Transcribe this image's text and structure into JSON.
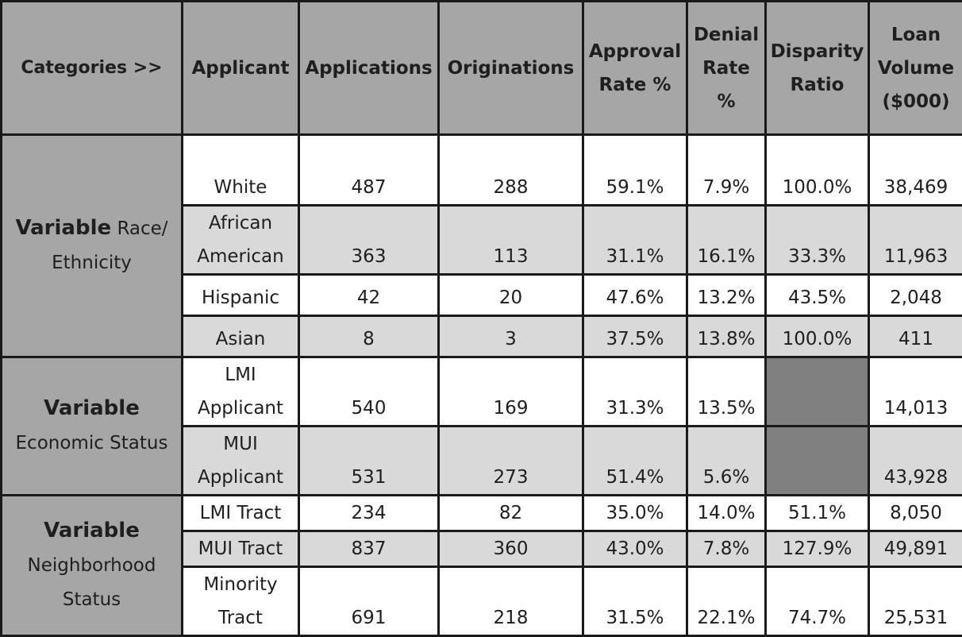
{
  "headers": {
    "categories": "Categories >>",
    "applicant": "Applicant",
    "applications": "Applications",
    "originations": "Originations",
    "approval_rate": "Approval Rate %",
    "denial_rate": "Denial Rate %",
    "disparity_ratio": "Disparity Ratio",
    "loan_volume": "Loan Volume ($000)"
  },
  "groups": {
    "race": {
      "bold": "Variable",
      "label": "Race/ Ethnicity"
    },
    "economic": {
      "bold": "Variable",
      "label": "Economic Status"
    },
    "neighborhood": {
      "bold": "Variable",
      "label": "Neighborhood Status"
    }
  },
  "rows": [
    {
      "applicant": "White",
      "applications": "487",
      "originations": "288",
      "approval_rate": "59.1%",
      "denial_rate": "7.9%",
      "disparity_ratio": "100.0%",
      "loan_volume": "38,469"
    },
    {
      "applicant": "African American",
      "applications": "363",
      "originations": "113",
      "approval_rate": "31.1%",
      "denial_rate": "16.1%",
      "disparity_ratio": "33.3%",
      "loan_volume": "11,963"
    },
    {
      "applicant": "Hispanic",
      "applications": "42",
      "originations": "20",
      "approval_rate": "47.6%",
      "denial_rate": "13.2%",
      "disparity_ratio": "43.5%",
      "loan_volume": "2,048"
    },
    {
      "applicant": "Asian",
      "applications": "8",
      "originations": "3",
      "approval_rate": "37.5%",
      "denial_rate": "13.8%",
      "disparity_ratio": "100.0%",
      "loan_volume": "411"
    },
    {
      "applicant": "LMI Applicant",
      "applications": "540",
      "originations": "169",
      "approval_rate": "31.3%",
      "denial_rate": "13.5%",
      "disparity_ratio": "",
      "loan_volume": "14,013"
    },
    {
      "applicant": "MUI Applicant",
      "applications": "531",
      "originations": "273",
      "approval_rate": "51.4%",
      "denial_rate": "5.6%",
      "disparity_ratio": "",
      "loan_volume": "43,928"
    },
    {
      "applicant": "LMI Tract",
      "applications": "234",
      "originations": "82",
      "approval_rate": "35.0%",
      "denial_rate": "14.0%",
      "disparity_ratio": "51.1%",
      "loan_volume": "8,050"
    },
    {
      "applicant": "MUI Tract",
      "applications": "837",
      "originations": "360",
      "approval_rate": "43.0%",
      "denial_rate": "7.8%",
      "disparity_ratio": "127.9%",
      "loan_volume": "49,891"
    },
    {
      "applicant": "Minority Tract",
      "applications": "691",
      "originations": "218",
      "approval_rate": "31.5%",
      "denial_rate": "22.1%",
      "disparity_ratio": "74.7%",
      "loan_volume": "25,531"
    }
  ],
  "colors": {
    "header_bg": "#a6a6a6",
    "row_white": "#ffffff",
    "row_grey": "#d9d9d9",
    "blank_cell": "#808080",
    "border": "#1a1a1a"
  }
}
